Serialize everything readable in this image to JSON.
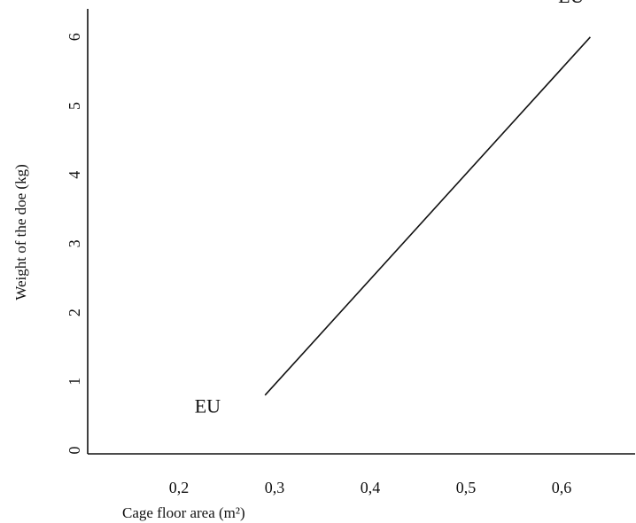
{
  "chart_data": {
    "type": "line",
    "title": "",
    "xlabel": "Cage floor area (m²)",
    "ylabel": "Weight of the doe (kg)",
    "xlim": [
      0.1,
      0.7
    ],
    "ylim": [
      0,
      6.6
    ],
    "x_ticks": [
      {
        "value": 0.2,
        "label": "0,2"
      },
      {
        "value": 0.3,
        "label": "0,3"
      },
      {
        "value": 0.4,
        "label": "0,4"
      },
      {
        "value": 0.5,
        "label": "0,5"
      },
      {
        "value": 0.6,
        "label": "0,6"
      }
    ],
    "y_ticks": [
      {
        "value": 0,
        "label": "0"
      },
      {
        "value": 1,
        "label": "1"
      },
      {
        "value": 2,
        "label": "2"
      },
      {
        "value": 3,
        "label": "3"
      },
      {
        "value": 4,
        "label": "4"
      },
      {
        "value": 5,
        "label": "5"
      },
      {
        "value": 6,
        "label": "6"
      }
    ],
    "series": [
      {
        "x": [
          0.29,
          0.63
        ],
        "y": [
          0.8,
          6.0
        ]
      }
    ],
    "annotations": [
      {
        "text": "EU",
        "x": 0.23,
        "y": 0.55
      },
      {
        "text": "EU",
        "x": 0.61,
        "y": 6.5
      }
    ],
    "grid": false,
    "colors": {
      "line": "#111111",
      "axis": "#111111"
    }
  }
}
